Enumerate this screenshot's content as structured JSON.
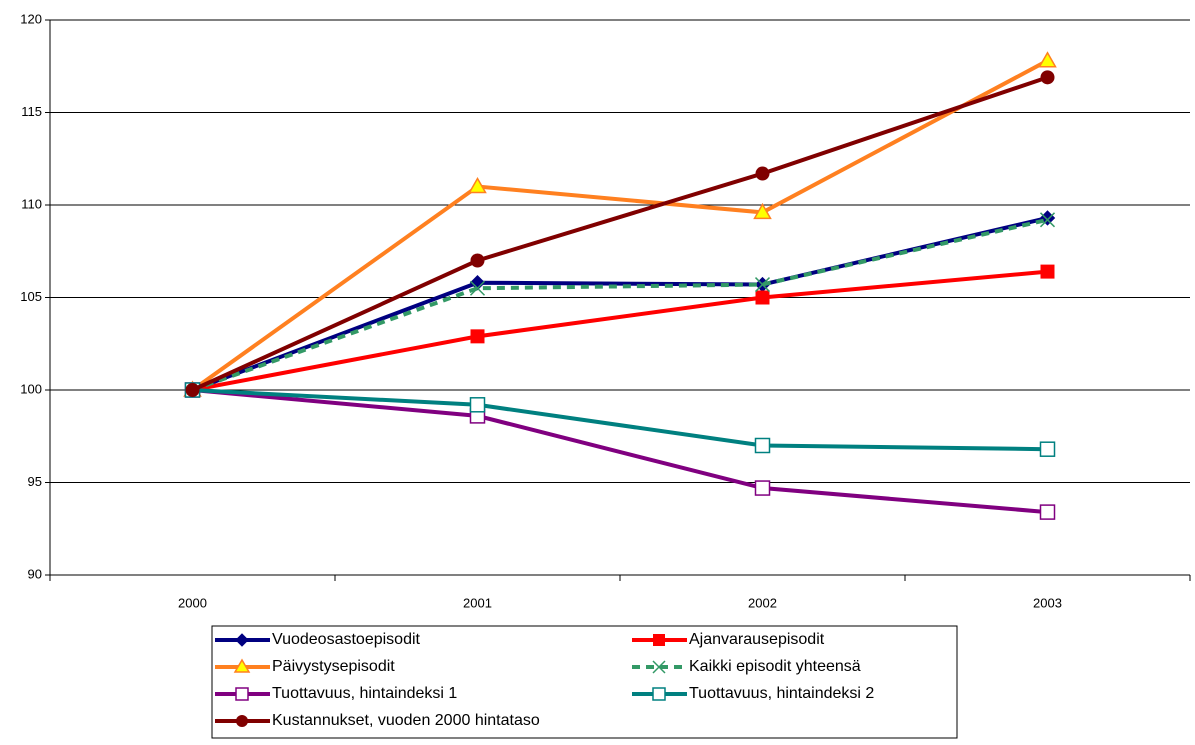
{
  "chart_data": {
    "type": "line",
    "categories": [
      "2000",
      "2001",
      "2002",
      "2003"
    ],
    "ylim": [
      90,
      120
    ],
    "yticks": [
      90,
      95,
      100,
      105,
      110,
      115,
      120
    ],
    "grid": true,
    "series": [
      {
        "name": "Vuodeosastoepisodit",
        "color": "#000080",
        "marker": "diamond",
        "values": [
          100,
          105.8,
          105.7,
          109.3
        ]
      },
      {
        "name": "Ajanvarausepisodit",
        "color": "#ff0000",
        "marker": "square",
        "values": [
          100,
          102.9,
          105.0,
          106.4
        ]
      },
      {
        "name": "Päivystysepisodit",
        "color": "#ff8020",
        "marker": "triangle",
        "values": [
          100,
          111.0,
          109.6,
          117.8
        ]
      },
      {
        "name": "Kaikki episodit yhteensä",
        "color": "#339966",
        "marker": "x",
        "dash": true,
        "values": [
          100,
          105.5,
          105.7,
          109.2
        ]
      },
      {
        "name": "Tuottavuus, hintaindeksi 1",
        "color": "#800080",
        "marker": "open-square",
        "values": [
          100,
          98.6,
          94.7,
          93.4
        ]
      },
      {
        "name": "Tuottavuus, hintaindeksi 2",
        "color": "#008080",
        "marker": "open-square",
        "values": [
          100,
          99.2,
          97.0,
          96.8
        ]
      },
      {
        "name": "Kustannukset, vuoden 2000 hintataso",
        "color": "#800000",
        "marker": "circle",
        "values": [
          100,
          107.0,
          111.7,
          116.9
        ]
      }
    ]
  }
}
